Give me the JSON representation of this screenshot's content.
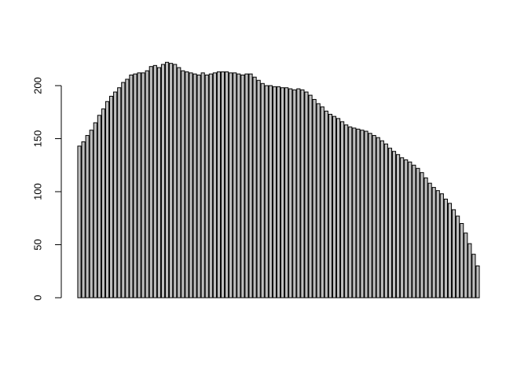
{
  "chart_data": {
    "type": "bar",
    "title": "",
    "xlabel": "",
    "ylabel": "",
    "ylim": [
      0,
      220
    ],
    "y_ticks": [
      0,
      50,
      100,
      150,
      200
    ],
    "y_tick_labels": [
      "0",
      "50",
      "100",
      "150",
      "200"
    ],
    "bar_fill": "#bebebe",
    "bar_stroke": "#000000",
    "values": [
      143,
      147,
      153,
      158,
      165,
      172,
      178,
      185,
      190,
      194,
      198,
      203,
      206,
      210,
      211,
      212,
      212,
      214,
      218,
      219,
      217,
      220,
      222,
      221,
      220,
      217,
      214,
      213,
      212,
      211,
      210,
      212,
      210,
      211,
      212,
      213,
      213,
      213,
      212,
      212,
      211,
      210,
      211,
      211,
      208,
      205,
      202,
      200,
      200,
      199,
      199,
      198,
      198,
      197,
      196,
      197,
      196,
      194,
      191,
      187,
      183,
      180,
      176,
      173,
      171,
      169,
      166,
      163,
      161,
      160,
      159,
      158,
      157,
      155,
      153,
      151,
      148,
      145,
      141,
      138,
      135,
      132,
      130,
      128,
      125,
      122,
      118,
      113,
      108,
      104,
      101,
      98,
      93,
      89,
      83,
      77,
      70,
      61,
      51,
      41,
      30
    ]
  }
}
